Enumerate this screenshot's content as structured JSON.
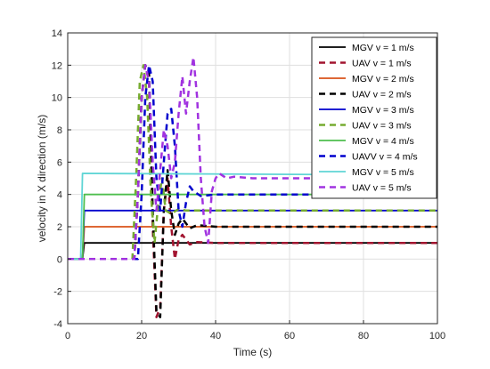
{
  "chart_data": {
    "type": "line",
    "title": "",
    "xlabel": "Time (s)",
    "ylabel": "velocity in X direction (m/s)",
    "xlim": [
      0,
      100
    ],
    "ylim": [
      -4,
      14
    ],
    "xticks": [
      0,
      20,
      40,
      60,
      80,
      100
    ],
    "yticks": [
      -4,
      -2,
      0,
      2,
      4,
      6,
      8,
      10,
      12,
      14
    ],
    "grid": true,
    "legend_position": "top-right",
    "series": [
      {
        "name": "MGV v = 1 m/s",
        "color": "#000000",
        "style": "solid",
        "x": [
          0,
          4,
          4.5,
          100
        ],
        "y": [
          0,
          0,
          1,
          1
        ]
      },
      {
        "name": "UAV v = 1 m/s",
        "color": "#a2142f",
        "style": "dashed",
        "x": [
          0,
          18,
          19,
          20,
          21,
          22,
          23,
          24,
          25,
          26,
          27,
          28,
          29,
          30,
          31,
          33,
          35,
          40,
          100
        ],
        "y": [
          0,
          0,
          4,
          10,
          12,
          11,
          2,
          -3.6,
          -3,
          3,
          5,
          2,
          0,
          1.2,
          1.5,
          0.9,
          1.05,
          1,
          1
        ]
      },
      {
        "name": "MGV v = 2 m/s",
        "color": "#d95319",
        "style": "solid",
        "x": [
          0,
          4,
          4.5,
          100
        ],
        "y": [
          0,
          0,
          2,
          2
        ]
      },
      {
        "name": "UAV v = 2 m/s",
        "color": "#000000",
        "style": "dashed",
        "x": [
          0,
          18,
          19,
          20,
          21,
          22,
          23,
          24,
          25,
          26,
          27,
          28,
          29,
          30,
          31,
          33,
          35,
          40,
          100
        ],
        "y": [
          0,
          0,
          4,
          10,
          12,
          11.5,
          3,
          -3.2,
          -3.6,
          3,
          5.5,
          3,
          1.5,
          2.2,
          2.5,
          1.9,
          2.1,
          2,
          2
        ]
      },
      {
        "name": "MGV v = 3 m/s",
        "color": "#0000cd",
        "style": "solid",
        "x": [
          0,
          4,
          4.5,
          100
        ],
        "y": [
          0,
          0,
          3,
          3
        ]
      },
      {
        "name": "UAV v = 3 m/s",
        "color": "#77ac30",
        "style": "dashed",
        "x": [
          0,
          17.5,
          18.5,
          19.5,
          20.5,
          21.5,
          22.5,
          23.5,
          24.5,
          25.5,
          26.5,
          28,
          30,
          32,
          35,
          40,
          100
        ],
        "y": [
          0,
          0,
          5,
          11,
          12,
          10,
          4,
          1,
          3.5,
          5,
          3,
          2.8,
          3.1,
          3,
          3,
          3,
          3
        ]
      },
      {
        "name": "MGV v = 4 m/s",
        "color": "#4dbe4d",
        "style": "solid",
        "x": [
          0,
          4,
          4.5,
          100
        ],
        "y": [
          0,
          0,
          4,
          4
        ]
      },
      {
        "name": "UAVV v = 4 m/s",
        "color": "#0000cd",
        "style": "dashed",
        "x": [
          0,
          19,
          20,
          21,
          22,
          23,
          24,
          25,
          26,
          27,
          28,
          29,
          30,
          31,
          32,
          33,
          34,
          36,
          40,
          100
        ],
        "y": [
          0,
          0,
          4,
          10,
          12,
          11,
          5,
          3,
          6,
          9,
          9.3,
          7,
          3,
          2,
          3.5,
          4.5,
          4.2,
          3.9,
          4,
          4
        ]
      },
      {
        "name": "MGV v = 5 m/s",
        "color": "#5fd5d5",
        "style": "solid",
        "x": [
          0,
          3.5,
          4,
          100
        ],
        "y": [
          0,
          0,
          5.3,
          5.2
        ]
      },
      {
        "name": "UAV v = 5 m/s",
        "color": "#a133e0",
        "style": "dashed",
        "x": [
          0,
          18,
          19,
          20,
          21,
          22,
          23,
          24,
          25,
          26,
          27,
          28,
          29,
          30,
          31,
          32,
          33,
          34,
          35,
          36,
          37,
          38,
          39,
          40,
          41,
          43,
          45,
          50,
          100
        ],
        "y": [
          0,
          0,
          4,
          10,
          12,
          11,
          6,
          3,
          5.5,
          8,
          7,
          5,
          6,
          9,
          11.3,
          9,
          11,
          12.5,
          10,
          5,
          2,
          1,
          4.2,
          5,
          5.3,
          5,
          5.1,
          5,
          5
        ]
      }
    ]
  }
}
